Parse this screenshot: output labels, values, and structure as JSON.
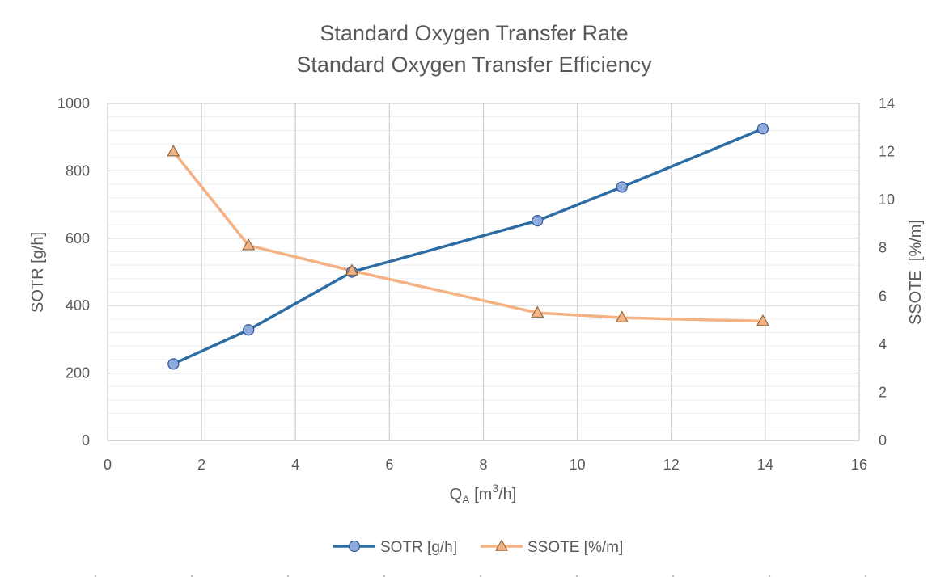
{
  "chart_data": {
    "type": "line",
    "title": [
      "Standard Oxygen Transfer Rate",
      "Standard Oxygen Transfer Efficiency"
    ],
    "xlabel": "Q_A [m³/h]",
    "xlabel_parts": {
      "base": "Q",
      "sub": "A",
      "unit_pre": " [m",
      "sup": "3",
      "unit_post": "/h]"
    },
    "ylabel": "SOTR [g/h]",
    "y2label": "SSOTE  [%/m]",
    "xlim": [
      0,
      16
    ],
    "ylim": [
      0,
      1000
    ],
    "y2lim": [
      0,
      14
    ],
    "xticks": [
      0,
      2,
      4,
      6,
      8,
      10,
      12,
      14,
      16
    ],
    "yticks": [
      0,
      200,
      400,
      600,
      800,
      1000
    ],
    "y2ticks": [
      0,
      2,
      4,
      6,
      8,
      10,
      12,
      14
    ],
    "grid": true,
    "legend_position": "bottom",
    "series": [
      {
        "name": "SOTR [g/h]",
        "axis": "left",
        "marker": "circle",
        "line_color": "#2E6DA4",
        "marker_fill": "#8FAADC",
        "marker_stroke": "#2F5597",
        "x": [
          1.4,
          3.0,
          5.2,
          9.15,
          10.95,
          13.95
        ],
        "y": [
          227,
          328,
          500,
          652,
          752,
          925
        ]
      },
      {
        "name": "SSOTE [%/m]",
        "axis": "right",
        "marker": "triangle",
        "line_color": "#F4B183",
        "marker_fill": "#F4B183",
        "marker_stroke": "#8C6239",
        "x": [
          1.4,
          3.0,
          5.2,
          9.15,
          10.95,
          13.95
        ],
        "y": [
          12.0,
          8.1,
          7.05,
          5.3,
          5.1,
          4.95
        ]
      }
    ]
  }
}
